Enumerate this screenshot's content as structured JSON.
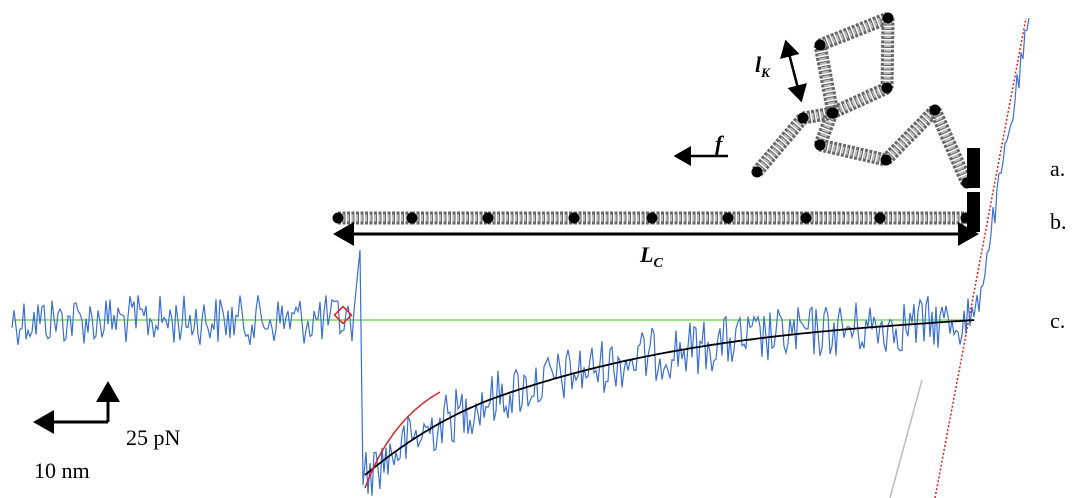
{
  "labels": {
    "kuhn": {
      "main": "l",
      "sub": "K"
    },
    "force": "f",
    "contour": {
      "main": "L",
      "sub": "C"
    }
  },
  "row_labels": [
    "a.",
    "b.",
    "c."
  ],
  "scale_bars": {
    "force": "25 pN",
    "distance": "10 nm"
  }
}
